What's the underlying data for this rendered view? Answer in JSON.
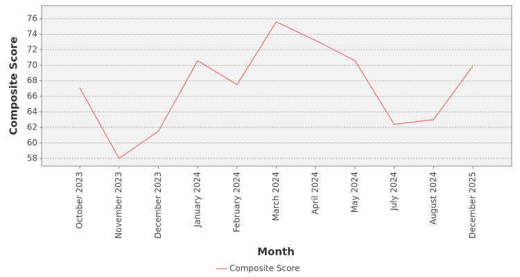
{
  "chart_data": {
    "type": "line",
    "x_label": "Month",
    "y_label": "Composite Score",
    "categories": [
      "October 2023",
      "November 2023",
      "December 2023",
      "January 2024",
      "February 2024",
      "March 2024",
      "April 2024",
      "May 2024",
      "July 2024",
      "August 2024",
      "December 2025"
    ],
    "series": [
      {
        "name": "Composite Score",
        "color": "#f05050",
        "values": [
          67.1,
          58.0,
          61.5,
          70.6,
          67.5,
          75.6,
          73.2,
          70.6,
          62.4,
          63.0,
          69.9
        ]
      }
    ],
    "ylim": [
      57.0,
      77.7
    ],
    "yticks": [
      58,
      60,
      62,
      64,
      66,
      68,
      70,
      72,
      74,
      76
    ],
    "grid": true,
    "legend": "bottom"
  }
}
